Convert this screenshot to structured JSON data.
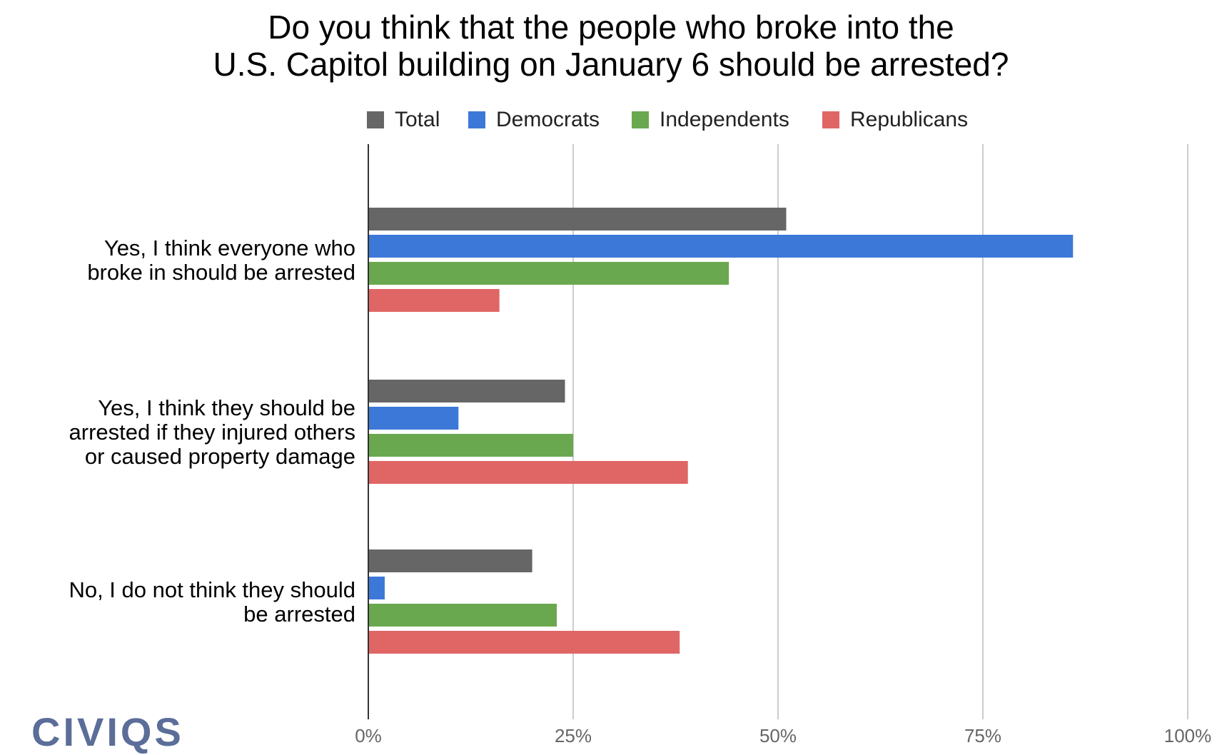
{
  "chart_data": {
    "type": "bar",
    "orientation": "horizontal",
    "title": [
      "Do you think that the people who broke into the",
      "U.S. Capitol building on January 6 should be arrested?"
    ],
    "categories": [
      [
        "Yes, I think everyone who",
        "broke in should be arrested"
      ],
      [
        "Yes, I think they should be",
        "arrested if they injured others",
        "or caused property damage"
      ],
      [
        "No, I do not think they should",
        "be arrested"
      ]
    ],
    "series": [
      {
        "name": "Total",
        "color": "#666666",
        "values": [
          51,
          24,
          20
        ]
      },
      {
        "name": "Democrats",
        "color": "#3c78d8",
        "values": [
          86,
          11,
          2
        ]
      },
      {
        "name": "Independents",
        "color": "#6aa84f",
        "values": [
          44,
          25,
          23
        ]
      },
      {
        "name": "Republicans",
        "color": "#e06666",
        "values": [
          16,
          39,
          38
        ]
      }
    ],
    "xlim": [
      0,
      100
    ],
    "xticks": [
      "0%",
      "25%",
      "50%",
      "75%",
      "100%"
    ],
    "grid": true,
    "legend_position": "top"
  },
  "brand": {
    "logo_text": "CIVIQS",
    "color": "#5b6d98"
  }
}
